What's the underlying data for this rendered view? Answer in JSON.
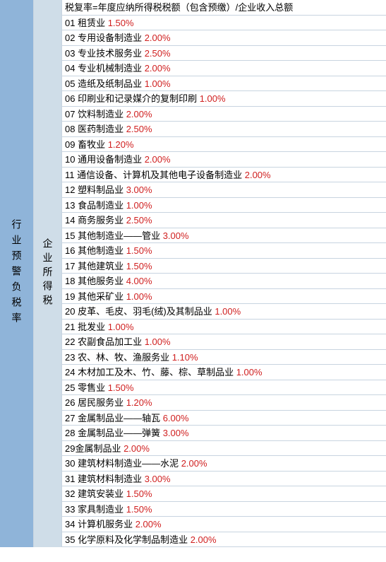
{
  "leftHeader": "行业预警负税率",
  "midHeader": "企业所得税",
  "formulaRow": "税复率=年度应纳所得税税额（包含预缴）/企业收入总额",
  "rows": [
    {
      "num": "01",
      "label": "租赁业",
      "pct": "1.50%"
    },
    {
      "num": "02",
      "label": "专用设备制造业",
      "pct": "2.00%"
    },
    {
      "num": "03",
      "label": "专业技术服务业",
      "pct": "2.50%"
    },
    {
      "num": "04",
      "label": "专业机械制造业",
      "pct": "2.00%"
    },
    {
      "num": "05",
      "label": "造纸及纸制品业",
      "pct": "1.00%"
    },
    {
      "num": "06",
      "label": "印刷业和记录媒介的复制印刷",
      "pct": "1.00%"
    },
    {
      "num": "07",
      "label": "饮料制造业",
      "pct": "2.00%"
    },
    {
      "num": "08",
      "label": "医药制造业",
      "pct": "2.50%"
    },
    {
      "num": "09",
      "label": "畜牧业",
      "pct": "1.20%"
    },
    {
      "num": "10",
      "label": "通用设备制造业",
      "pct": "2.00%"
    },
    {
      "num": "11",
      "label": "通信设备、计算机及其他电子设备制造业",
      "pct": "2.00%"
    },
    {
      "num": "12",
      "label": "塑料制品业",
      "pct": "3.00%"
    },
    {
      "num": "13",
      "label": "食品制造业",
      "pct": "1.00%"
    },
    {
      "num": "14",
      "label": "商务服务业",
      "pct": "2.50%"
    },
    {
      "num": "15",
      "label": "其他制造业——管业",
      "pct": "3.00%"
    },
    {
      "num": "16",
      "label": "其他制造业",
      "pct": "1.50%"
    },
    {
      "num": "17",
      "label": "其他建筑业",
      "pct": "1.50%"
    },
    {
      "num": "18",
      "label": "其他服务业",
      "pct": "4.00%"
    },
    {
      "num": "19",
      "label": "其他采矿业",
      "pct": "1.00%"
    },
    {
      "num": "20",
      "label": "皮革、毛皮、羽毛(绒)及其制品业",
      "pct": "1.00%"
    },
    {
      "num": "21",
      "label": "批发业",
      "pct": "1.00%"
    },
    {
      "num": "22",
      "label": "农副食品加工业",
      "pct": "1.00%"
    },
    {
      "num": "23",
      "label": "农、林、牧、渔服务业",
      "pct": "1.10%"
    },
    {
      "num": "24",
      "label": "木材加工及木、竹、藤、棕、草制品业",
      "pct": "1.00%"
    },
    {
      "num": "25",
      "label": "零售业",
      "pct": "1.50%"
    },
    {
      "num": "26",
      "label": "居民服务业",
      "pct": "1.20%"
    },
    {
      "num": "27",
      "label": "金属制品业——轴瓦",
      "pct": "6.00%"
    },
    {
      "num": "28",
      "label": "金属制品业——弹簧",
      "pct": "3.00%"
    },
    {
      "num": "29",
      "label": "金属制品业",
      "pct": "2.00%",
      "nospace": true
    },
    {
      "num": "30",
      "label": "建筑材料制造业——水泥",
      "pct": "2.00%"
    },
    {
      "num": "31",
      "label": "建筑材料制造业",
      "pct": "3.00%"
    },
    {
      "num": "32",
      "label": "建筑安装业",
      "pct": "1.50%"
    },
    {
      "num": "33",
      "label": "家具制造业",
      "pct": "1.50%"
    },
    {
      "num": "34",
      "label": "计算机服务业",
      "pct": "2.00%"
    },
    {
      "num": "35",
      "label": "化学原料及化学制品制造业",
      "pct": "2.00%"
    }
  ],
  "colors": {
    "leftBg": "#8fb4d9",
    "midBg": "#cfdde8",
    "pctColor": "#d02020",
    "borderColor": "#c8d4e0",
    "textColor": "#000000"
  }
}
